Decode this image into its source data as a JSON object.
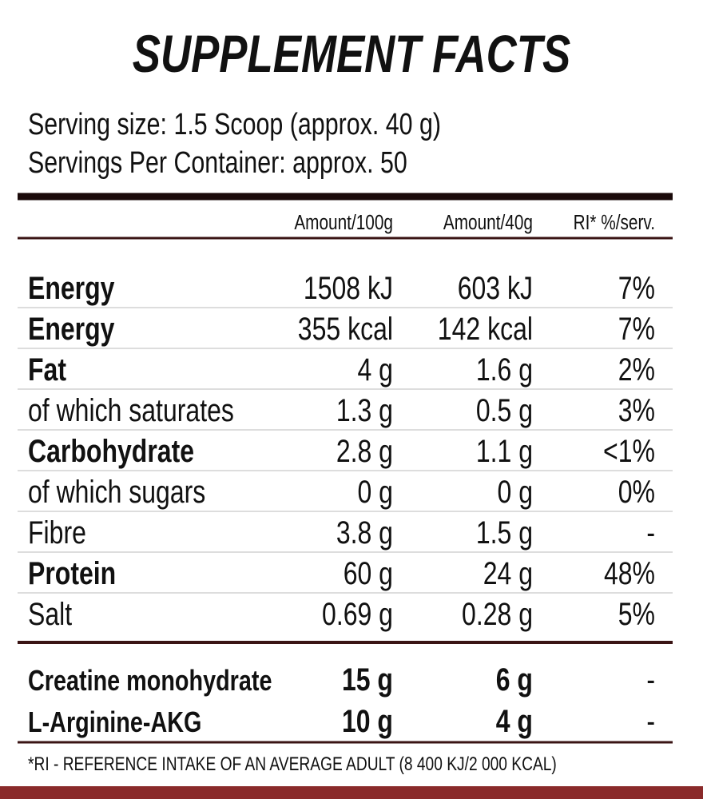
{
  "title": "SUPPLEMENT FACTS",
  "serving_size": "Serving size: 1.5 Scoop (approx. 40 g)",
  "servings_per_container": "Servings Per Container: approx. 50",
  "table": {
    "header": [
      "Amount/100g",
      "Amount/40g",
      "RI* %/serv."
    ],
    "rows": [
      {
        "label": "Energy",
        "per_100g": "1508 kJ",
        "per_serving": "603 kJ",
        "ri": "7%",
        "bold": true
      },
      {
        "label": "Energy",
        "per_100g": "355 kcal",
        "per_serving": "142 kcal",
        "ri": "7%",
        "bold": true
      },
      {
        "label": "Fat",
        "per_100g": "4 g",
        "per_serving": "1.6 g",
        "ri": "2%",
        "bold": true
      },
      {
        "label": "of which saturates",
        "per_100g": "1.3 g",
        "per_serving": "0.5 g",
        "ri": "3%",
        "bold": false
      },
      {
        "label": "Carbohydrate",
        "per_100g": "2.8 g",
        "per_serving": "1.1 g",
        "ri": "<1%",
        "bold": true
      },
      {
        "label": "of which sugars",
        "per_100g": "0 g",
        "per_serving": "0 g",
        "ri": "0%",
        "bold": false
      },
      {
        "label": "Fibre",
        "per_100g": "3.8 g",
        "per_serving": "1.5 g",
        "ri": "-",
        "bold": false
      },
      {
        "label": "Protein",
        "per_100g": "60 g",
        "per_serving": "24 g",
        "ri": "48%",
        "bold": true
      },
      {
        "label": "Salt",
        "per_100g": "0.69 g",
        "per_serving": "0.28 g",
        "ri": "5%",
        "bold": false
      }
    ],
    "extras": [
      {
        "label": "Creatine monohydrate",
        "per_100g": "15 g",
        "per_serving": "6 g",
        "ri": "-"
      },
      {
        "label": "L-Arginine-AKG",
        "per_100g": "10 g",
        "per_serving": "4 g",
        "ri": "-"
      }
    ]
  },
  "footnote": "*RI - REFERENCE INTAKE OF AN AVERAGE ADULT (8 400 KJ/2 000 KCAL)"
}
